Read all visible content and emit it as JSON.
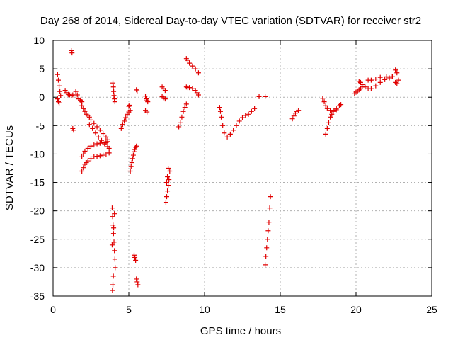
{
  "chart_data": {
    "type": "scatter",
    "title": "Day 268 of 2014, Sidereal Day-to-day VTEC variation (SDTVAR) for receiver str2",
    "xlabel": "GPS time / hours",
    "ylabel": "SDTVAR / TECUs",
    "xlim": [
      0,
      25
    ],
    "ylim": [
      -35,
      10
    ],
    "xticks": [
      0,
      5,
      10,
      15,
      20,
      25
    ],
    "yticks": [
      -35,
      -30,
      -25,
      -20,
      -15,
      -10,
      -5,
      0,
      5,
      10
    ],
    "grid": true,
    "marker": "+",
    "color": "#e00000",
    "series": [
      {
        "name": "seg-a",
        "x": [
          0.3,
          0.35,
          0.4,
          0.45,
          0.5
        ],
        "y": [
          4.0,
          3.0,
          2.0,
          1.0,
          0.3
        ]
      },
      {
        "name": "seg-a2",
        "x": [
          0.3,
          0.35,
          0.4
        ],
        "y": [
          -0.3,
          -0.8,
          -1.0
        ]
      },
      {
        "name": "seg-b",
        "x": [
          1.2,
          1.25
        ],
        "y": [
          8.2,
          7.8
        ]
      },
      {
        "name": "seg-c",
        "x": [
          0.8,
          0.9,
          1.0,
          1.1,
          1.2,
          1.3
        ],
        "y": [
          1.2,
          0.8,
          0.5,
          0.4,
          0.3,
          0.4
        ]
      },
      {
        "name": "seg-d",
        "x": [
          1.3,
          1.35
        ],
        "y": [
          -5.5,
          -5.8
        ]
      },
      {
        "name": "seg-e",
        "x": [
          1.5,
          1.6,
          1.7,
          1.8,
          1.9
        ],
        "y": [
          1.0,
          0.4,
          -0.3,
          -0.5,
          -0.8
        ]
      },
      {
        "name": "seg-f",
        "x": [
          1.9,
          2.0,
          2.1,
          2.2,
          2.3,
          2.4,
          2.5,
          2.7,
          2.9,
          3.1,
          3.3,
          3.5,
          3.6
        ],
        "y": [
          -1.5,
          -2.0,
          -2.5,
          -3.0,
          -3.2,
          -3.5,
          -4.0,
          -4.6,
          -5.2,
          -5.8,
          -6.4,
          -7.0,
          -7.5
        ]
      },
      {
        "name": "seg-g",
        "x": [
          2.4,
          2.6,
          2.8,
          3.0,
          3.2,
          3.4,
          3.6,
          3.7
        ],
        "y": [
          -4.8,
          -5.5,
          -6.3,
          -7.0,
          -7.6,
          -8.2,
          -8.7,
          -9.0
        ]
      },
      {
        "name": "seg-h",
        "x": [
          1.9,
          2.0,
          2.1,
          2.2,
          2.3,
          2.5,
          2.7,
          2.9,
          3.1,
          3.3,
          3.5,
          3.7
        ],
        "y": [
          -13.0,
          -12.4,
          -11.8,
          -11.5,
          -11.2,
          -10.8,
          -10.5,
          -10.4,
          -10.3,
          -10.2,
          -10.0,
          -9.8
        ]
      },
      {
        "name": "seg-i",
        "x": [
          1.9,
          2.0,
          2.1,
          2.3,
          2.5,
          2.7,
          2.9,
          3.1,
          3.3,
          3.5,
          3.6
        ],
        "y": [
          -10.5,
          -10.0,
          -9.5,
          -9.0,
          -8.6,
          -8.4,
          -8.2,
          -8.1,
          -8.0,
          -8.0,
          -7.8
        ]
      },
      {
        "name": "seg-j",
        "x": [
          3.95,
          3.98,
          4.0,
          4.02,
          4.05,
          4.08
        ],
        "y": [
          2.5,
          1.8,
          1.0,
          0.3,
          -0.3,
          -0.8
        ]
      },
      {
        "name": "seg-k",
        "x": [
          3.9,
          3.93,
          3.96,
          3.99,
          4.02,
          4.05,
          4.08,
          4.1,
          3.98,
          3.95,
          3.92,
          3.9,
          4.0,
          4.05
        ],
        "y": [
          -19.5,
          -21.0,
          -22.5,
          -24.0,
          -25.5,
          -27.0,
          -28.5,
          -30.0,
          -31.5,
          -33.0,
          -34.0,
          -26.0,
          -23.0,
          -20.5
        ]
      },
      {
        "name": "seg-l",
        "x": [
          4.5,
          4.6,
          4.7,
          4.8,
          4.9,
          5.0,
          5.1
        ],
        "y": [
          -5.5,
          -4.8,
          -4.2,
          -3.6,
          -3.0,
          -2.6,
          -2.3
        ]
      },
      {
        "name": "seg-m",
        "x": [
          5.0,
          5.05
        ],
        "y": [
          -1.6,
          -1.4
        ]
      },
      {
        "name": "seg-n",
        "x": [
          5.1,
          5.15,
          5.2,
          5.25,
          5.3,
          5.35,
          5.4,
          5.45,
          5.5
        ],
        "y": [
          -13.0,
          -12.2,
          -11.5,
          -10.8,
          -10.2,
          -9.6,
          -9.2,
          -8.8,
          -8.6
        ]
      },
      {
        "name": "seg-o",
        "x": [
          5.35,
          5.4,
          5.45
        ],
        "y": [
          -27.8,
          -28.2,
          -28.7
        ]
      },
      {
        "name": "seg-p",
        "x": [
          5.5,
          5.55,
          5.6
        ],
        "y": [
          -32.0,
          -32.5,
          -33.0
        ]
      },
      {
        "name": "seg-q",
        "x": [
          5.5,
          5.55
        ],
        "y": [
          1.3,
          1.1
        ]
      },
      {
        "name": "seg-r",
        "x": [
          6.1,
          6.15,
          6.2,
          6.25
        ],
        "y": [
          0.2,
          -0.3,
          -0.6,
          -0.8
        ]
      },
      {
        "name": "seg-s",
        "x": [
          6.1,
          6.2
        ],
        "y": [
          -2.3,
          -2.6
        ]
      },
      {
        "name": "seg-t",
        "x": [
          7.2,
          7.3,
          7.4
        ],
        "y": [
          1.8,
          1.5,
          1.2
        ]
      },
      {
        "name": "seg-u",
        "x": [
          7.2,
          7.3,
          7.4
        ],
        "y": [
          0.1,
          -0.1,
          -0.3
        ]
      },
      {
        "name": "seg-v",
        "x": [
          7.45,
          7.5,
          7.55,
          7.6,
          7.65,
          7.7,
          7.5,
          7.55,
          7.6
        ],
        "y": [
          -18.5,
          -17.5,
          -16.5,
          -15.5,
          -14.5,
          -13.0,
          -15.0,
          -14.0,
          -12.5
        ]
      },
      {
        "name": "seg-w",
        "x": [
          8.3,
          8.4,
          8.5,
          8.6,
          8.7,
          8.8
        ],
        "y": [
          -5.2,
          -4.5,
          -3.5,
          -2.5,
          -1.8,
          -1.2
        ]
      },
      {
        "name": "seg-x",
        "x": [
          8.8,
          8.9,
          9.0,
          9.2,
          9.4,
          9.5,
          9.6
        ],
        "y": [
          1.8,
          1.7,
          1.7,
          1.5,
          1.2,
          0.8,
          0.4
        ]
      },
      {
        "name": "seg-y",
        "x": [
          8.8,
          8.9,
          9.0,
          9.2,
          9.4,
          9.6
        ],
        "y": [
          6.8,
          6.5,
          6.0,
          5.5,
          5.0,
          4.3
        ]
      },
      {
        "name": "seg-z",
        "x": [
          11.0,
          11.05,
          11.1,
          11.2,
          11.3,
          11.5,
          11.7,
          11.9,
          12.1,
          12.3,
          12.5,
          12.7,
          12.9,
          13.1,
          13.3
        ],
        "y": [
          -1.8,
          -2.5,
          -3.5,
          -5.0,
          -6.3,
          -7.0,
          -6.5,
          -5.8,
          -5.0,
          -4.2,
          -3.6,
          -3.2,
          -3.0,
          -2.5,
          -2.0
        ]
      },
      {
        "name": "seg-aa",
        "x": [
          13.6,
          14.0
        ],
        "y": [
          0.1,
          0.1
        ]
      },
      {
        "name": "seg-ab",
        "x": [
          14.0,
          14.05,
          14.1,
          14.15,
          14.2,
          14.25,
          14.3,
          14.35
        ],
        "y": [
          -29.5,
          -28.0,
          -26.5,
          -25.0,
          -23.5,
          -22.0,
          -19.5,
          -17.5
        ]
      },
      {
        "name": "seg-ac",
        "x": [
          15.8,
          15.9,
          16.0,
          16.1,
          16.2
        ],
        "y": [
          -3.8,
          -3.3,
          -2.8,
          -2.5,
          -2.3
        ]
      },
      {
        "name": "seg-ad",
        "x": [
          17.8,
          17.9,
          18.0,
          18.1,
          18.3,
          18.5,
          18.7,
          18.9,
          19.0
        ],
        "y": [
          -0.2,
          -0.8,
          -1.5,
          -2.0,
          -2.3,
          -2.3,
          -2.0,
          -1.5,
          -1.3
        ]
      },
      {
        "name": "seg-ae",
        "x": [
          18.0,
          18.1,
          18.2,
          18.3,
          18.4,
          18.5,
          18.7
        ],
        "y": [
          -6.5,
          -5.5,
          -4.5,
          -3.5,
          -3.0,
          -2.5,
          -2.2
        ]
      },
      {
        "name": "seg-af",
        "x": [
          19.9,
          20.0,
          20.1,
          20.2,
          20.3,
          20.4
        ],
        "y": [
          0.6,
          0.9,
          1.1,
          1.3,
          1.5,
          1.8
        ]
      },
      {
        "name": "seg-ag",
        "x": [
          20.2,
          20.3,
          20.4,
          20.6,
          20.8,
          21.0,
          21.3,
          21.6,
          21.9,
          22.2,
          22.4
        ],
        "y": [
          2.8,
          2.6,
          2.2,
          1.8,
          1.5,
          1.5,
          2.0,
          2.6,
          3.1,
          3.4,
          3.6
        ]
      },
      {
        "name": "seg-ah",
        "x": [
          20.8,
          21.0,
          21.3,
          21.6,
          22.0,
          22.4
        ],
        "y": [
          3.0,
          3.0,
          3.2,
          3.5,
          3.6,
          3.6
        ]
      },
      {
        "name": "seg-ai",
        "x": [
          22.6,
          22.7,
          22.8
        ],
        "y": [
          4.8,
          4.3,
          3.0
        ]
      },
      {
        "name": "seg-aj",
        "x": [
          22.6,
          22.7
        ],
        "y": [
          2.6,
          2.4
        ]
      }
    ]
  }
}
